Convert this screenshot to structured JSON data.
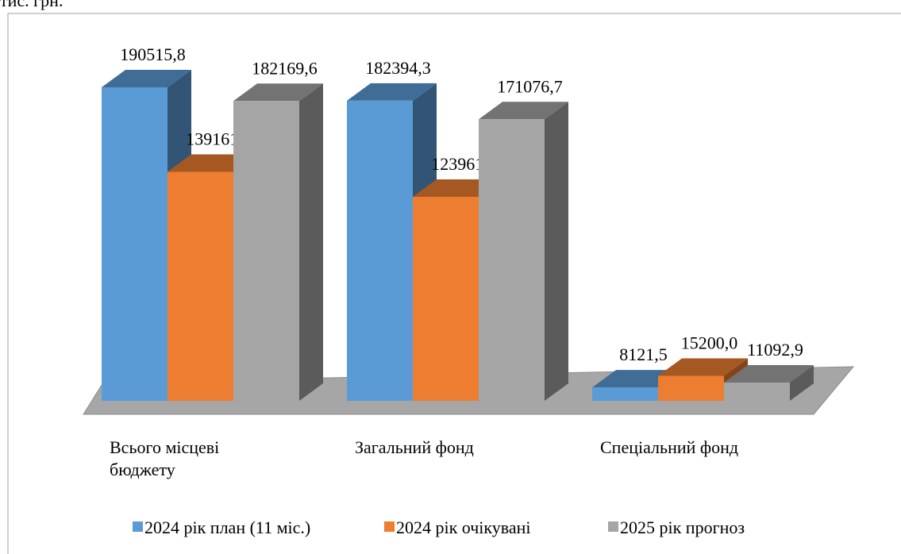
{
  "chart_data": {
    "type": "bar3d",
    "unit": "тис. грн.",
    "categories": [
      "Всього місцеві бюджету",
      "Загальний фонд",
      "Спеціальний фонд"
    ],
    "series": [
      {
        "name": "2024 рік план (11 міс.)",
        "color": "#5b9bd5",
        "values": [
          190515.8,
          182394.3,
          8121.5
        ],
        "value_labels": [
          "190515,8",
          "182394,3",
          "8121,5"
        ]
      },
      {
        "name": "2024 рік очікувані",
        "color": "#ed7d31",
        "values": [
          139161.5,
          123961.5,
          15200.0
        ],
        "value_labels": [
          "139161,5",
          "123961,5",
          "15200,0"
        ]
      },
      {
        "name": "2025 рік прогноз",
        "color": "#a5a5a5",
        "values": [
          182169.6,
          171076.7,
          11092.9
        ],
        "value_labels": [
          "182169,6",
          "171076,7",
          "11092,9"
        ]
      }
    ],
    "legend": "bottom"
  }
}
